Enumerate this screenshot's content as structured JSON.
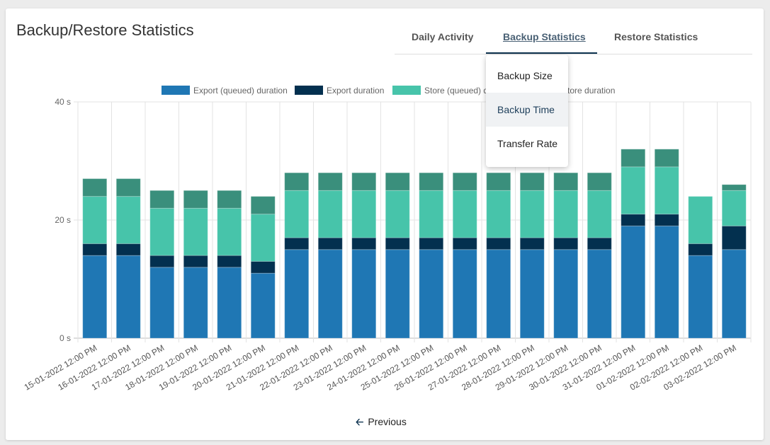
{
  "title": "Backup/Restore Statistics",
  "tabs": [
    {
      "label": "Daily Activity",
      "active": false
    },
    {
      "label": "Backup Statistics",
      "active": true
    },
    {
      "label": "Restore Statistics",
      "active": false
    }
  ],
  "dropdown": {
    "items": [
      {
        "label": "Backup Size",
        "highlighted": false
      },
      {
        "label": "Backup Time",
        "highlighted": true
      },
      {
        "label": "Transfer Rate",
        "highlighted": false
      }
    ]
  },
  "pagination": {
    "previous_label": "Previous",
    "previous_icon": "arrow-left-icon"
  },
  "chart_data": {
    "type": "bar",
    "stacked": true,
    "categories": [
      "15-01-2022 12:00 PM",
      "16-01-2022 12:00 PM",
      "17-01-2022 12:00 PM",
      "18-01-2022 12:00 PM",
      "19-01-2022 12:00 PM",
      "20-01-2022 12:00 PM",
      "21-01-2022 12:00 PM",
      "22-01-2022 12:00 PM",
      "23-01-2022 12:00 PM",
      "24-01-2022 12:00 PM",
      "25-01-2022 12:00 PM",
      "26-01-2022 12:00 PM",
      "27-01-2022 12:00 PM",
      "28-01-2022 12:00 PM",
      "29-01-2022 12:00 PM",
      "30-01-2022 12:00 PM",
      "31-01-2022 12:00 PM",
      "01-02-2022 12:00 PM",
      "02-02-2022 12:00 PM",
      "03-02-2022 12:00 PM"
    ],
    "series": [
      {
        "name": "Export (queued) duration",
        "color": "#1f77b4",
        "values": [
          14,
          14,
          12,
          12,
          12,
          11,
          15,
          15,
          15,
          15,
          15,
          15,
          15,
          15,
          15,
          15,
          19,
          19,
          14,
          15
        ]
      },
      {
        "name": "Export duration",
        "color": "#03304f",
        "values": [
          2,
          2,
          2,
          2,
          2,
          2,
          2,
          2,
          2,
          2,
          2,
          2,
          2,
          2,
          2,
          2,
          2,
          2,
          2,
          4
        ]
      },
      {
        "name": "Store (queued) duration",
        "color": "#47c4aa",
        "values": [
          8,
          8,
          8,
          8,
          8,
          8,
          8,
          8,
          8,
          8,
          8,
          8,
          8,
          8,
          8,
          8,
          8,
          8,
          8,
          6
        ]
      },
      {
        "name": "Store duration",
        "color": "#3a8f7c",
        "values": [
          3,
          3,
          3,
          3,
          3,
          3,
          3,
          3,
          3,
          3,
          3,
          3,
          3,
          3,
          3,
          3,
          3,
          3,
          0,
          1
        ]
      }
    ],
    "yticks": [
      "0 s",
      "20 s",
      "40 s"
    ],
    "ylim": [
      0,
      40
    ],
    "yunit": "s",
    "grid": true,
    "legend": "top"
  }
}
